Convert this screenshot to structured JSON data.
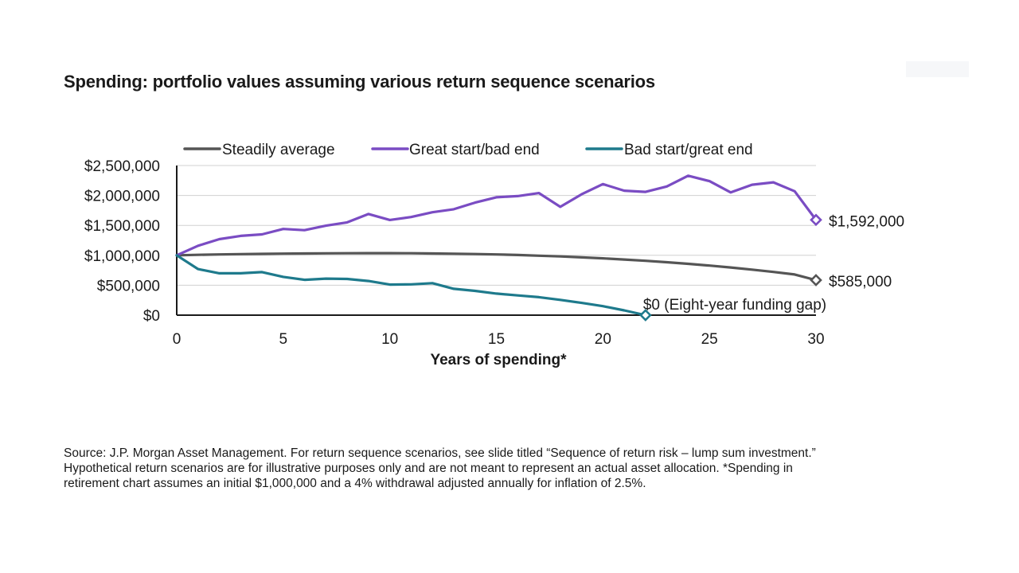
{
  "colors": {
    "steady": "#555555",
    "great_start": "#7a4cc3",
    "bad_start": "#1e7a8c",
    "axis": "#1a1a1a",
    "grid": "#d0d0d0"
  },
  "source_lines": [
    "Source: J.P. Morgan Asset Management. For return sequence scenarios, see slide titled “Sequence of return risk – lump sum investment.”",
    "Hypothetical return scenarios are for illustrative purposes only and are not meant to represent an actual asset allocation. *Spending in",
    "retirement chart assumes an initial $1,000,000 and a 4% withdrawal adjusted annually for inflation of 2.5%."
  ],
  "chart_data": {
    "type": "line",
    "title": "Spending: portfolio values assuming various return sequence scenarios",
    "xlabel": "Years of spending*",
    "ylabel": "",
    "xlim": [
      0,
      30
    ],
    "ylim": [
      0,
      2500000
    ],
    "x_ticks": [
      0,
      5,
      10,
      15,
      20,
      25,
      30
    ],
    "x_tick_labels": [
      "0",
      "5",
      "10",
      "15",
      "20",
      "25",
      "30"
    ],
    "y_ticks": [
      0,
      500000,
      1000000,
      1500000,
      2000000,
      2500000
    ],
    "y_tick_labels": [
      "$0",
      "$500,000",
      "$1,000,000",
      "$1,500,000",
      "$2,000,000",
      "$2,500,000"
    ],
    "grid": true,
    "legend_position": "top",
    "series": [
      {
        "name": "Steadily average",
        "x": [
          0,
          1,
          2,
          3,
          4,
          5,
          6,
          7,
          8,
          9,
          10,
          11,
          12,
          13,
          14,
          15,
          16,
          17,
          18,
          19,
          20,
          21,
          22,
          23,
          24,
          25,
          26,
          27,
          28,
          29,
          30
        ],
        "values": [
          1000000,
          1008000,
          1015000,
          1020000,
          1024000,
          1028000,
          1031000,
          1033000,
          1035000,
          1036000,
          1036000,
          1034000,
          1031000,
          1027000,
          1021000,
          1014000,
          1005000,
          994000,
          981000,
          966000,
          949000,
          930000,
          908000,
          884000,
          858000,
          828000,
          796000,
          761000,
          722000,
          680000,
          585000
        ],
        "end_label": "$585,000"
      },
      {
        "name": "Great start/bad end",
        "x": [
          0,
          1,
          2,
          3,
          4,
          5,
          6,
          7,
          8,
          9,
          10,
          11,
          12,
          13,
          14,
          15,
          16,
          17,
          18,
          19,
          20,
          21,
          22,
          23,
          24,
          25,
          26,
          27,
          28,
          29,
          30
        ],
        "values": [
          1000000,
          1160000,
          1270000,
          1325000,
          1350000,
          1440000,
          1420000,
          1495000,
          1550000,
          1690000,
          1590000,
          1640000,
          1720000,
          1770000,
          1880000,
          1970000,
          1990000,
          2040000,
          1810000,
          2020000,
          2190000,
          2080000,
          2060000,
          2150000,
          2330000,
          2240000,
          2050000,
          2180000,
          2220000,
          2070000,
          1592000
        ],
        "end_label": "$1,592,000"
      },
      {
        "name": "Bad start/great end",
        "x": [
          0,
          1,
          2,
          3,
          4,
          5,
          6,
          7,
          8,
          9,
          10,
          11,
          12,
          13,
          14,
          15,
          16,
          17,
          18,
          19,
          20,
          21,
          22
        ],
        "values": [
          1000000,
          770000,
          700000,
          700000,
          720000,
          640000,
          590000,
          610000,
          605000,
          570000,
          510000,
          515000,
          535000,
          440000,
          405000,
          360000,
          330000,
          300000,
          255000,
          205000,
          150000,
          80000,
          0
        ],
        "end_label": "$0 (Eight-year funding gap)"
      }
    ]
  }
}
